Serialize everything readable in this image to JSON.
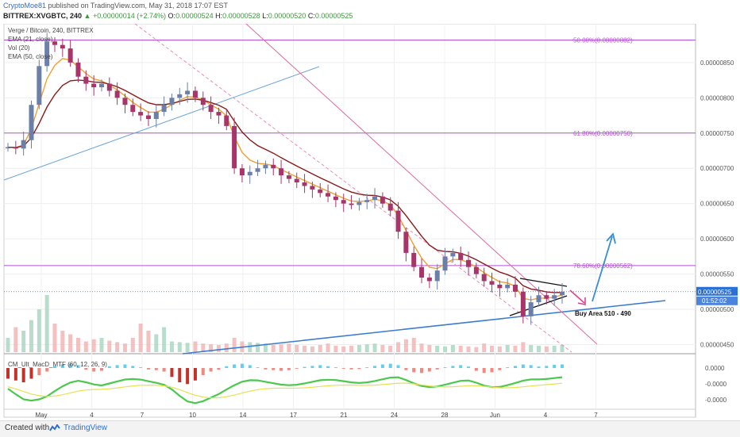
{
  "header": {
    "author": "CryptoMoe81",
    "published_text": "published on TradingView.com, May 31, 2018 17:07 EST",
    "symbol": "BITTREX:XVGBTC, 240",
    "change": "▲ +0.00000014 (+2.74%)",
    "o_label": "O:",
    "o_value": "0.00000524",
    "h_label": "H:",
    "h_value": "0.00000528",
    "l_label": "L:",
    "l_value": "0.00000520",
    "c_label": "C:",
    "c_value": "0.00000525"
  },
  "legend": {
    "title": "Verge / Bitcoin, 240, BITTREX",
    "ema21": "EMA (21, close)",
    "vol": "Vol (20)",
    "ema50": "EMA (50, close)",
    "macd": "CM_Ult_MacD_MTF (60, 12, 26, 9)"
  },
  "footer": {
    "created": "Created with",
    "brand": "TradingView"
  },
  "chart_data": {
    "type": "candlestick",
    "title": "Verge / Bitcoin, 240, BITTREX",
    "x_ticks": [
      "May",
      "4",
      "7",
      "10",
      "14",
      "17",
      "21",
      "24",
      "28",
      "Jun",
      "4",
      "7"
    ],
    "y_ticks": [
      "0.00000850",
      "0.00000800",
      "0.00000750",
      "0.00000700",
      "0.00000650",
      "0.00000600",
      "0.00000550",
      "0.00000500",
      "0.00000450"
    ],
    "y_tick_values": [
      850,
      800,
      750,
      700,
      650,
      600,
      550,
      500,
      450
    ],
    "ylim": [
      437,
      905
    ],
    "current_price_label": "0.00000525",
    "current_price": 525,
    "countdown_label": "01:52:02",
    "fib_levels": [
      {
        "label": "50.00%(0.00000882)",
        "value": 882
      },
      {
        "label": "61.80%(0.00000750)",
        "value": 750
      },
      {
        "label": "78.60%(0.00000562)",
        "value": 562
      }
    ],
    "annotation": "Buy Area 510 - 490",
    "macd_ticks": [
      "0.0000",
      "-0.0000",
      "-0.0000"
    ],
    "close_path": [
      730,
      728,
      740,
      790,
      845,
      880,
      875,
      870,
      850,
      830,
      820,
      815,
      820,
      810,
      800,
      790,
      780,
      775,
      770,
      780,
      790,
      800,
      805,
      810,
      800,
      790,
      780,
      775,
      760,
      700,
      690,
      695,
      700,
      705,
      700,
      690,
      685,
      680,
      675,
      670,
      665,
      660,
      655,
      650,
      648,
      652,
      655,
      660,
      650,
      640,
      610,
      580,
      560,
      545,
      540,
      555,
      575,
      580,
      570,
      560,
      550,
      540,
      535,
      530,
      535,
      525,
      490,
      510,
      520,
      515,
      520,
      525
    ],
    "volume": [
      20,
      35,
      30,
      45,
      60,
      80,
      40,
      30,
      25,
      20,
      15,
      18,
      20,
      16,
      14,
      12,
      20,
      40,
      30,
      25,
      35,
      15,
      14,
      13,
      15,
      12,
      11,
      10,
      12,
      20,
      15,
      14,
      13,
      12,
      10,
      11,
      12,
      10,
      9,
      8,
      10,
      12,
      9,
      8,
      9,
      10,
      11,
      12,
      10,
      9,
      14,
      18,
      20,
      12,
      10,
      9,
      8,
      10,
      9,
      8,
      7,
      12,
      9,
      8,
      10,
      9,
      14,
      10,
      9,
      8,
      9,
      10
    ],
    "macd_hist": [
      -30,
      -35,
      -40,
      -30,
      -20,
      -10,
      5,
      10,
      12,
      8,
      -5,
      -10,
      -8,
      5,
      8,
      10,
      6,
      2,
      -4,
      -6,
      -10,
      -25,
      -40,
      -45,
      -35,
      -20,
      -10,
      -5,
      5,
      10,
      12,
      8,
      2,
      -4,
      -6,
      -8,
      -6,
      -2,
      3,
      6,
      8,
      5,
      2,
      -2,
      -4,
      -3,
      2,
      6,
      10,
      12,
      8,
      -6,
      -12,
      -14,
      -10,
      -4,
      2,
      6,
      8,
      4,
      -8,
      -14,
      -12,
      -6,
      2,
      6,
      10,
      8,
      4,
      6,
      9,
      10
    ]
  }
}
